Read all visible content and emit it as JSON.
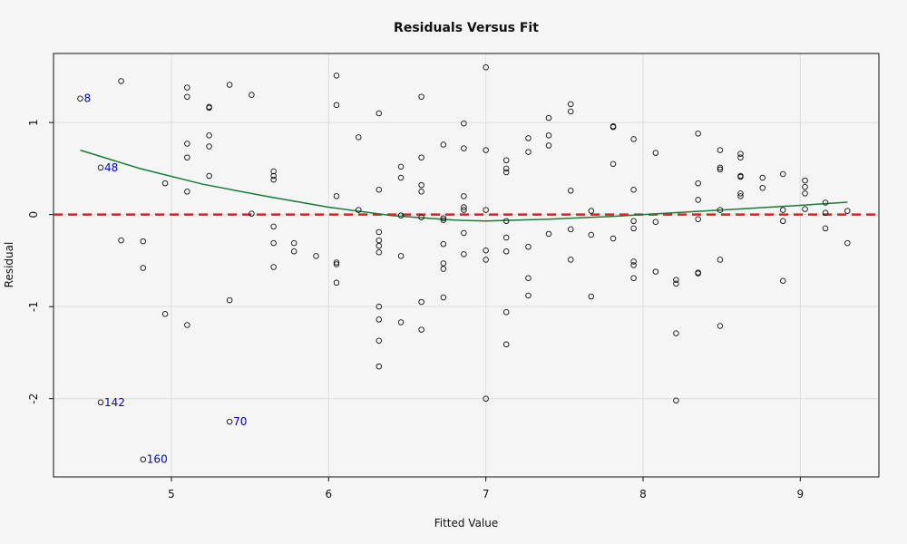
{
  "chart_data": {
    "type": "scatter",
    "title": "Residuals Versus Fit",
    "xlabel": "Fitted Value",
    "ylabel": "Residual",
    "xlim": [
      4.25,
      9.5
    ],
    "ylim": [
      -2.85,
      1.75
    ],
    "xticks": [
      5,
      6,
      7,
      8,
      9
    ],
    "yticks": [
      -2,
      -1,
      0,
      1
    ],
    "grid": true,
    "reference_line": {
      "y": 0,
      "color": "#e02020",
      "style": "dashed"
    },
    "smooth": {
      "color": "#1a7a3a",
      "points": [
        [
          4.42,
          0.7
        ],
        [
          4.8,
          0.5
        ],
        [
          5.2,
          0.33
        ],
        [
          5.6,
          0.2
        ],
        [
          6.0,
          0.08
        ],
        [
          6.4,
          -0.01
        ],
        [
          6.8,
          -0.06
        ],
        [
          7.0,
          -0.07
        ],
        [
          7.4,
          -0.05
        ],
        [
          7.8,
          -0.02
        ],
        [
          8.2,
          0.02
        ],
        [
          8.6,
          0.06
        ],
        [
          9.0,
          0.1
        ],
        [
          9.3,
          0.135
        ]
      ]
    },
    "colors": {
      "points": "#111111",
      "labels": "#0000cc"
    },
    "labeled_points": [
      {
        "label": "8",
        "x": 4.42,
        "y": 1.26
      },
      {
        "label": "48",
        "x": 4.55,
        "y": 0.51
      },
      {
        "label": "142",
        "x": 4.55,
        "y": -2.04
      },
      {
        "label": "70",
        "x": 5.37,
        "y": -2.25
      },
      {
        "label": "160",
        "x": 4.82,
        "y": -2.66
      }
    ],
    "points": [
      [
        4.68,
        1.45
      ],
      [
        4.68,
        -0.28
      ],
      [
        4.82,
        -0.29
      ],
      [
        4.82,
        -0.58
      ],
      [
        4.96,
        0.34
      ],
      [
        4.96,
        -1.08
      ],
      [
        5.1,
        1.38
      ],
      [
        5.1,
        1.28
      ],
      [
        5.1,
        0.77
      ],
      [
        5.1,
        0.62
      ],
      [
        5.1,
        0.25
      ],
      [
        5.1,
        -1.2
      ],
      [
        5.24,
        1.17
      ],
      [
        5.24,
        1.16
      ],
      [
        5.24,
        0.86
      ],
      [
        5.24,
        0.74
      ],
      [
        5.24,
        0.42
      ],
      [
        5.37,
        1.41
      ],
      [
        5.37,
        -0.93
      ],
      [
        5.51,
        1.3
      ],
      [
        5.51,
        0.01
      ],
      [
        5.65,
        0.47
      ],
      [
        5.65,
        0.42
      ],
      [
        5.65,
        0.38
      ],
      [
        5.65,
        -0.13
      ],
      [
        5.65,
        -0.31
      ],
      [
        5.65,
        -0.57
      ],
      [
        5.78,
        -0.31
      ],
      [
        5.78,
        -0.4
      ],
      [
        5.92,
        -0.45
      ],
      [
        6.05,
        1.51
      ],
      [
        6.05,
        1.19
      ],
      [
        6.05,
        0.2
      ],
      [
        6.05,
        -0.52
      ],
      [
        6.05,
        -0.54
      ],
      [
        6.05,
        -0.74
      ],
      [
        6.19,
        0.84
      ],
      [
        6.19,
        0.05
      ],
      [
        6.32,
        1.1
      ],
      [
        6.32,
        0.27
      ],
      [
        6.32,
        -0.19
      ],
      [
        6.32,
        -0.28
      ],
      [
        6.32,
        -0.34
      ],
      [
        6.32,
        -0.41
      ],
      [
        6.32,
        -1.0
      ],
      [
        6.32,
        -1.14
      ],
      [
        6.32,
        -1.37
      ],
      [
        6.32,
        -1.65
      ],
      [
        6.46,
        0.52
      ],
      [
        6.46,
        0.4
      ],
      [
        6.46,
        -0.01
      ],
      [
        6.46,
        -0.45
      ],
      [
        6.46,
        -1.17
      ],
      [
        6.59,
        1.28
      ],
      [
        6.59,
        0.62
      ],
      [
        6.59,
        0.32
      ],
      [
        6.59,
        0.25
      ],
      [
        6.59,
        -0.03
      ],
      [
        6.59,
        -0.95
      ],
      [
        6.59,
        -1.25
      ],
      [
        6.73,
        0.76
      ],
      [
        6.73,
        -0.04
      ],
      [
        6.73,
        -0.06
      ],
      [
        6.73,
        -0.32
      ],
      [
        6.73,
        -0.53
      ],
      [
        6.73,
        -0.59
      ],
      [
        6.73,
        -0.9
      ],
      [
        6.86,
        0.99
      ],
      [
        6.86,
        0.72
      ],
      [
        6.86,
        0.2
      ],
      [
        6.86,
        0.08
      ],
      [
        6.86,
        0.05
      ],
      [
        6.86,
        -0.2
      ],
      [
        6.86,
        -0.43
      ],
      [
        7.0,
        1.6
      ],
      [
        7.0,
        0.7
      ],
      [
        7.0,
        0.05
      ],
      [
        7.0,
        -0.39
      ],
      [
        7.0,
        -0.49
      ],
      [
        7.0,
        -2.0
      ],
      [
        7.13,
        0.59
      ],
      [
        7.13,
        0.5
      ],
      [
        7.13,
        0.46
      ],
      [
        7.13,
        -0.07
      ],
      [
        7.13,
        -0.25
      ],
      [
        7.13,
        -0.4
      ],
      [
        7.13,
        -1.06
      ],
      [
        7.13,
        -1.41
      ],
      [
        7.27,
        0.83
      ],
      [
        7.27,
        0.68
      ],
      [
        7.27,
        -0.35
      ],
      [
        7.27,
        -0.69
      ],
      [
        7.27,
        -0.88
      ],
      [
        7.4,
        1.05
      ],
      [
        7.4,
        0.86
      ],
      [
        7.4,
        0.75
      ],
      [
        7.4,
        -0.21
      ],
      [
        7.54,
        1.2
      ],
      [
        7.54,
        1.12
      ],
      [
        7.54,
        0.26
      ],
      [
        7.54,
        -0.16
      ],
      [
        7.54,
        -0.49
      ],
      [
        7.67,
        0.04
      ],
      [
        7.67,
        -0.22
      ],
      [
        7.67,
        -0.89
      ],
      [
        7.81,
        0.96
      ],
      [
        7.81,
        0.95
      ],
      [
        7.81,
        0.55
      ],
      [
        7.81,
        -0.26
      ],
      [
        7.94,
        0.82
      ],
      [
        7.94,
        0.27
      ],
      [
        7.94,
        -0.07
      ],
      [
        7.94,
        -0.15
      ],
      [
        7.94,
        -0.51
      ],
      [
        7.94,
        -0.55
      ],
      [
        7.94,
        -0.69
      ],
      [
        8.08,
        0.67
      ],
      [
        8.08,
        -0.08
      ],
      [
        8.08,
        -0.62
      ],
      [
        8.21,
        -0.71
      ],
      [
        8.21,
        -0.75
      ],
      [
        8.21,
        -1.29
      ],
      [
        8.21,
        -2.02
      ],
      [
        8.35,
        0.88
      ],
      [
        8.35,
        0.34
      ],
      [
        8.35,
        0.16
      ],
      [
        8.35,
        -0.05
      ],
      [
        8.35,
        -0.63
      ],
      [
        8.35,
        -0.64
      ],
      [
        8.49,
        0.7
      ],
      [
        8.49,
        0.51
      ],
      [
        8.49,
        0.49
      ],
      [
        8.49,
        0.05
      ],
      [
        8.49,
        -0.49
      ],
      [
        8.49,
        -1.21
      ],
      [
        8.62,
        0.66
      ],
      [
        8.62,
        0.62
      ],
      [
        8.62,
        0.42
      ],
      [
        8.62,
        0.41
      ],
      [
        8.62,
        0.23
      ],
      [
        8.62,
        0.2
      ],
      [
        8.76,
        0.4
      ],
      [
        8.76,
        0.29
      ],
      [
        8.89,
        0.44
      ],
      [
        8.89,
        0.05
      ],
      [
        8.89,
        -0.07
      ],
      [
        8.89,
        -0.72
      ],
      [
        9.03,
        0.37
      ],
      [
        9.03,
        0.3
      ],
      [
        9.03,
        0.23
      ],
      [
        9.03,
        0.06
      ],
      [
        9.16,
        0.13
      ],
      [
        9.16,
        0.02
      ],
      [
        9.16,
        -0.15
      ],
      [
        9.3,
        0.04
      ],
      [
        9.3,
        -0.31
      ]
    ]
  }
}
